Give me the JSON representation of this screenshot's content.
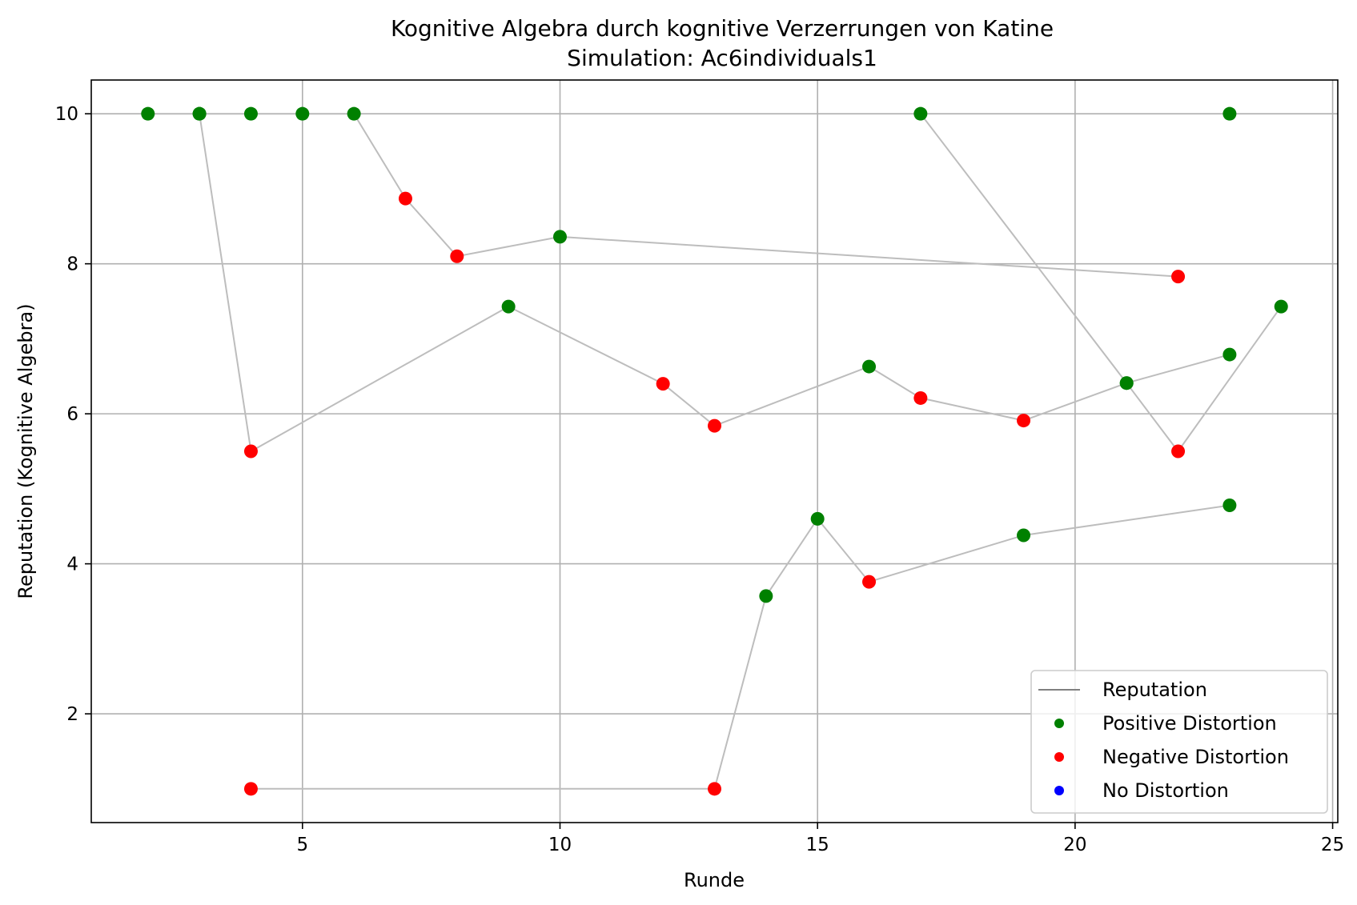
{
  "chart_data": {
    "type": "scatter",
    "title": "Kognitive Algebra durch kognitive Verzerrungen von Katine",
    "subtitle": "Simulation: Ac6individuals1",
    "xlabel": "Runde",
    "ylabel": "Reputation (Kognitive Algebra)",
    "xlim": [
      0.9,
      25.1
    ],
    "ylim": [
      0.55,
      10.45
    ],
    "xticks": [
      5,
      10,
      15,
      20,
      25
    ],
    "yticks": [
      2,
      4,
      6,
      8,
      10
    ],
    "grid": true,
    "legend_position": "lower-right",
    "legend": [
      {
        "label": "Reputation",
        "kind": "line",
        "color": "#808080"
      },
      {
        "label": "Positive Distortion",
        "kind": "marker",
        "color": "#008000"
      },
      {
        "label": "Negative Distortion",
        "kind": "marker",
        "color": "#ff0000"
      },
      {
        "label": "No Distortion",
        "kind": "marker",
        "color": "#0000ff"
      }
    ],
    "colors": {
      "positive": "#008000",
      "negative": "#ff0000",
      "none": "#0000ff",
      "line": "#bdbdbd"
    },
    "series": [
      {
        "points": [
          {
            "x": 2,
            "y": 10,
            "d": "positive"
          },
          {
            "x": 3,
            "y": 10,
            "d": "positive"
          },
          {
            "x": 4,
            "y": 10,
            "d": "positive"
          },
          {
            "x": 5,
            "y": 10,
            "d": "positive"
          },
          {
            "x": 6,
            "y": 10,
            "d": "positive"
          },
          {
            "x": 7,
            "y": 8.87,
            "d": "negative"
          },
          {
            "x": 8,
            "y": 8.1,
            "d": "negative"
          },
          {
            "x": 10,
            "y": 8.36,
            "d": "positive"
          },
          {
            "x": 22,
            "y": 7.83,
            "d": "negative"
          }
        ]
      },
      {
        "points": [
          {
            "x": 3,
            "y": 10,
            "d": "positive"
          },
          {
            "x": 4,
            "y": 5.5,
            "d": "negative"
          },
          {
            "x": 9,
            "y": 7.43,
            "d": "positive"
          },
          {
            "x": 12,
            "y": 6.4,
            "d": "negative"
          },
          {
            "x": 13,
            "y": 5.84,
            "d": "negative"
          },
          {
            "x": 16,
            "y": 6.63,
            "d": "positive"
          },
          {
            "x": 17,
            "y": 6.21,
            "d": "negative"
          },
          {
            "x": 19,
            "y": 5.91,
            "d": "negative"
          },
          {
            "x": 21,
            "y": 6.41,
            "d": "positive"
          },
          {
            "x": 23,
            "y": 6.79,
            "d": "positive"
          }
        ]
      },
      {
        "points": [
          {
            "x": 17,
            "y": 10,
            "d": "positive"
          },
          {
            "x": 21,
            "y": 6.41,
            "d": "positive"
          },
          {
            "x": 22,
            "y": 5.5,
            "d": "negative"
          },
          {
            "x": 24,
            "y": 7.43,
            "d": "positive"
          }
        ]
      },
      {
        "points": [
          {
            "x": 4,
            "y": 1,
            "d": "negative"
          },
          {
            "x": 13,
            "y": 1,
            "d": "negative"
          },
          {
            "x": 14,
            "y": 3.57,
            "d": "positive"
          },
          {
            "x": 15,
            "y": 4.6,
            "d": "positive"
          },
          {
            "x": 16,
            "y": 3.76,
            "d": "negative"
          },
          {
            "x": 19,
            "y": 4.38,
            "d": "positive"
          },
          {
            "x": 23,
            "y": 4.78,
            "d": "positive"
          }
        ]
      },
      {
        "points": [
          {
            "x": 23,
            "y": 10,
            "d": "positive"
          }
        ]
      }
    ]
  }
}
